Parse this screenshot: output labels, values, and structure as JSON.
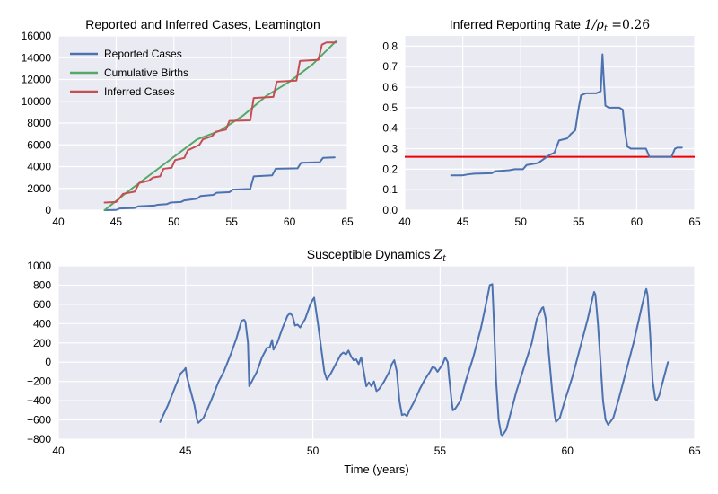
{
  "figure": {
    "xlabel_bottom": "Time (years)"
  },
  "chart_data": [
    {
      "id": "cases",
      "type": "line",
      "title": "Reported and Inferred Cases, Leamington",
      "xlabel": "",
      "ylabel": "",
      "xlim": [
        40,
        65
      ],
      "ylim": [
        0,
        16000
      ],
      "xticks": [
        40,
        45,
        50,
        55,
        60,
        65
      ],
      "yticks": [
        0,
        2000,
        4000,
        6000,
        8000,
        10000,
        12000,
        14000,
        16000
      ],
      "grid": true,
      "legend": "top-left",
      "series": [
        {
          "name": "Reported Cases",
          "color": "#4c72b0",
          "step": true,
          "points": [
            [
              44,
              0
            ],
            [
              45,
              20
            ],
            [
              45.3,
              150
            ],
            [
              46.6,
              200
            ],
            [
              46.9,
              350
            ],
            [
              48.3,
              420
            ],
            [
              48.6,
              500
            ],
            [
              49.4,
              560
            ],
            [
              49.7,
              700
            ],
            [
              50.6,
              750
            ],
            [
              50.9,
              900
            ],
            [
              52.0,
              1050
            ],
            [
              52.3,
              1300
            ],
            [
              53.4,
              1400
            ],
            [
              53.7,
              1600
            ],
            [
              54.8,
              1650
            ],
            [
              55.1,
              1900
            ],
            [
              56.6,
              1950
            ],
            [
              56.9,
              3100
            ],
            [
              58.5,
              3200
            ],
            [
              58.8,
              3800
            ],
            [
              60.7,
              3850
            ],
            [
              61.0,
              4350
            ],
            [
              62.6,
              4400
            ],
            [
              62.9,
              4800
            ],
            [
              63.9,
              4850
            ]
          ]
        },
        {
          "name": "Cumulative Births",
          "color": "#55a868",
          "points": [
            [
              44,
              0
            ],
            [
              46,
              1700
            ],
            [
              48,
              3300
            ],
            [
              50,
              4900
            ],
            [
              52,
              6500
            ],
            [
              54,
              7300
            ],
            [
              56,
              8700
            ],
            [
              58,
              10500
            ],
            [
              60,
              11800
            ],
            [
              62,
              13400
            ],
            [
              64,
              15500
            ]
          ]
        },
        {
          "name": "Inferred Cases",
          "color": "#c44e52",
          "step": true,
          "points": [
            [
              44,
              700
            ],
            [
              45,
              750
            ],
            [
              45.3,
              1100
            ],
            [
              45.6,
              1500
            ],
            [
              46.6,
              1700
            ],
            [
              47.0,
              2500
            ],
            [
              47.8,
              2700
            ],
            [
              48.2,
              3000
            ],
            [
              48.8,
              3100
            ],
            [
              49.1,
              3800
            ],
            [
              49.8,
              3900
            ],
            [
              50.1,
              4600
            ],
            [
              50.9,
              4800
            ],
            [
              51.2,
              5500
            ],
            [
              52.2,
              6000
            ],
            [
              52.5,
              6500
            ],
            [
              53.3,
              6800
            ],
            [
              53.6,
              7200
            ],
            [
              54.5,
              7400
            ],
            [
              54.8,
              8200
            ],
            [
              56.6,
              8250
            ],
            [
              56.9,
              10300
            ],
            [
              58.6,
              10400
            ],
            [
              58.9,
              11800
            ],
            [
              60.6,
              11900
            ],
            [
              60.9,
              13700
            ],
            [
              62.5,
              13800
            ],
            [
              62.8,
              15200
            ],
            [
              63.2,
              15400
            ],
            [
              64,
              15400
            ]
          ]
        }
      ]
    },
    {
      "id": "rate",
      "type": "line",
      "title_prefix": "Inferred Reporting Rate ",
      "title_math": "1/ρ",
      "title_sub": "t",
      "title_suffix": " =0.26",
      "xlim": [
        40,
        65
      ],
      "ylim": [
        0,
        0.85
      ],
      "xticks": [
        40,
        45,
        50,
        55,
        60,
        65
      ],
      "yticks": [
        0.0,
        0.1,
        0.2,
        0.3,
        0.4,
        0.5,
        0.6,
        0.7,
        0.8
      ],
      "grid": true,
      "hline": {
        "value": 0.26,
        "color": "#ee0000"
      },
      "series": [
        {
          "name": "",
          "color": "#4c72b0",
          "points": [
            [
              44,
              0.17
            ],
            [
              45,
              0.17
            ],
            [
              45.5,
              0.175
            ],
            [
              46,
              0.178
            ],
            [
              47.5,
              0.18
            ],
            [
              47.8,
              0.19
            ],
            [
              49,
              0.195
            ],
            [
              49.5,
              0.2
            ],
            [
              50.2,
              0.2
            ],
            [
              50.5,
              0.22
            ],
            [
              51.5,
              0.23
            ],
            [
              52,
              0.25
            ],
            [
              52.5,
              0.27
            ],
            [
              52.9,
              0.28
            ],
            [
              53.3,
              0.34
            ],
            [
              54,
              0.35
            ],
            [
              54.3,
              0.37
            ],
            [
              54.7,
              0.39
            ],
            [
              55,
              0.5
            ],
            [
              55.2,
              0.56
            ],
            [
              55.6,
              0.57
            ],
            [
              56.5,
              0.57
            ],
            [
              56.9,
              0.58
            ],
            [
              57.0,
              0.7
            ],
            [
              57.05,
              0.76
            ],
            [
              57.15,
              0.65
            ],
            [
              57.3,
              0.51
            ],
            [
              57.6,
              0.5
            ],
            [
              58.5,
              0.5
            ],
            [
              58.8,
              0.49
            ],
            [
              59,
              0.38
            ],
            [
              59.2,
              0.31
            ],
            [
              59.5,
              0.3
            ],
            [
              60.5,
              0.3
            ],
            [
              60.8,
              0.3
            ],
            [
              61.1,
              0.26
            ],
            [
              62,
              0.26
            ],
            [
              62.5,
              0.26
            ],
            [
              63,
              0.26
            ],
            [
              63.3,
              0.3
            ],
            [
              63.5,
              0.305
            ],
            [
              63.9,
              0.305
            ]
          ]
        }
      ]
    },
    {
      "id": "susceptible",
      "type": "line",
      "title_prefix": "Susceptible Dynamics ",
      "title_math": "Z",
      "title_sub": "t",
      "title_suffix": "",
      "xlabel": "Time (years)",
      "xlim": [
        40,
        65
      ],
      "ylim": [
        -800,
        1000
      ],
      "xticks": [
        40,
        45,
        50,
        55,
        60,
        65
      ],
      "yticks": [
        -800,
        -600,
        -400,
        -200,
        0,
        200,
        400,
        600,
        800,
        1000
      ],
      "grid": true,
      "series": [
        {
          "name": "",
          "color": "#4c72b0",
          "points": [
            [
              44.0,
              -620
            ],
            [
              44.3,
              -450
            ],
            [
              44.6,
              -250
            ],
            [
              44.8,
              -120
            ],
            [
              44.95,
              -80
            ],
            [
              45.0,
              -60
            ],
            [
              45.05,
              -150
            ],
            [
              45.2,
              -300
            ],
            [
              45.35,
              -450
            ],
            [
              45.45,
              -600
            ],
            [
              45.5,
              -630
            ],
            [
              45.7,
              -580
            ],
            [
              46.0,
              -400
            ],
            [
              46.3,
              -200
            ],
            [
              46.5,
              -100
            ],
            [
              46.8,
              100
            ],
            [
              47.0,
              250
            ],
            [
              47.2,
              430
            ],
            [
              47.3,
              440
            ],
            [
              47.35,
              420
            ],
            [
              47.45,
              200
            ],
            [
              47.5,
              -250
            ],
            [
              47.6,
              -200
            ],
            [
              47.8,
              -100
            ],
            [
              48.0,
              50
            ],
            [
              48.2,
              150
            ],
            [
              48.3,
              150
            ],
            [
              48.4,
              230
            ],
            [
              48.45,
              130
            ],
            [
              48.6,
              200
            ],
            [
              48.8,
              350
            ],
            [
              49.0,
              480
            ],
            [
              49.1,
              510
            ],
            [
              49.2,
              480
            ],
            [
              49.3,
              380
            ],
            [
              49.4,
              390
            ],
            [
              49.5,
              360
            ],
            [
              49.7,
              450
            ],
            [
              49.9,
              600
            ],
            [
              50.0,
              650
            ],
            [
              50.05,
              670
            ],
            [
              50.2,
              400
            ],
            [
              50.45,
              -100
            ],
            [
              50.55,
              -180
            ],
            [
              50.7,
              -120
            ],
            [
              50.9,
              -20
            ],
            [
              51.1,
              80
            ],
            [
              51.2,
              100
            ],
            [
              51.3,
              80
            ],
            [
              51.4,
              120
            ],
            [
              51.5,
              60
            ],
            [
              51.6,
              20
            ],
            [
              51.7,
              30
            ],
            [
              51.8,
              -20
            ],
            [
              51.9,
              50
            ],
            [
              52.0,
              -100
            ],
            [
              52.1,
              -250
            ],
            [
              52.2,
              -210
            ],
            [
              52.3,
              -250
            ],
            [
              52.4,
              -200
            ],
            [
              52.5,
              -300
            ],
            [
              52.6,
              -280
            ],
            [
              52.8,
              -200
            ],
            [
              53.0,
              -100
            ],
            [
              53.1,
              -20
            ],
            [
              53.2,
              20
            ],
            [
              53.3,
              -100
            ],
            [
              53.4,
              -400
            ],
            [
              53.5,
              -550
            ],
            [
              53.6,
              -540
            ],
            [
              53.7,
              -560
            ],
            [
              53.8,
              -500
            ],
            [
              54.0,
              -400
            ],
            [
              54.2,
              -280
            ],
            [
              54.4,
              -180
            ],
            [
              54.6,
              -100
            ],
            [
              54.7,
              -50
            ],
            [
              54.8,
              -60
            ],
            [
              54.9,
              -100
            ],
            [
              55.0,
              -60
            ],
            [
              55.1,
              -20
            ],
            [
              55.2,
              50
            ],
            [
              55.3,
              0
            ],
            [
              55.35,
              -150
            ],
            [
              55.45,
              -400
            ],
            [
              55.5,
              -500
            ],
            [
              55.6,
              -480
            ],
            [
              55.8,
              -400
            ],
            [
              56.0,
              -200
            ],
            [
              56.3,
              50
            ],
            [
              56.6,
              350
            ],
            [
              56.8,
              600
            ],
            [
              56.95,
              800
            ],
            [
              57.05,
              810
            ],
            [
              57.1,
              500
            ],
            [
              57.2,
              -200
            ],
            [
              57.3,
              -600
            ],
            [
              57.4,
              -750
            ],
            [
              57.45,
              -760
            ],
            [
              57.6,
              -700
            ],
            [
              57.8,
              -500
            ],
            [
              58.0,
              -300
            ],
            [
              58.3,
              -50
            ],
            [
              58.6,
              200
            ],
            [
              58.8,
              450
            ],
            [
              59.0,
              560
            ],
            [
              59.05,
              570
            ],
            [
              59.15,
              450
            ],
            [
              59.3,
              0
            ],
            [
              59.4,
              -300
            ],
            [
              59.5,
              -550
            ],
            [
              59.55,
              -620
            ],
            [
              59.7,
              -580
            ],
            [
              59.9,
              -400
            ],
            [
              60.2,
              -150
            ],
            [
              60.5,
              150
            ],
            [
              60.8,
              450
            ],
            [
              61.0,
              680
            ],
            [
              61.05,
              730
            ],
            [
              61.1,
              700
            ],
            [
              61.2,
              400
            ],
            [
              61.3,
              0
            ],
            [
              61.4,
              -400
            ],
            [
              61.5,
              -600
            ],
            [
              61.6,
              -650
            ],
            [
              61.8,
              -580
            ],
            [
              62.0,
              -400
            ],
            [
              62.3,
              -100
            ],
            [
              62.6,
              200
            ],
            [
              62.9,
              550
            ],
            [
              63.05,
              720
            ],
            [
              63.1,
              760
            ],
            [
              63.15,
              700
            ],
            [
              63.25,
              300
            ],
            [
              63.35,
              -200
            ],
            [
              63.45,
              -380
            ],
            [
              63.5,
              -400
            ],
            [
              63.6,
              -350
            ],
            [
              63.8,
              -150
            ],
            [
              63.95,
              0
            ]
          ]
        }
      ]
    }
  ]
}
